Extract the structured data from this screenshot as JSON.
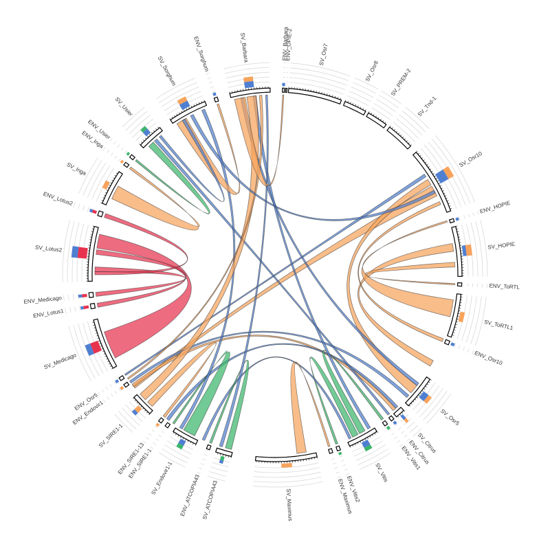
{
  "colors": {
    "orange": "#f7a35c",
    "blue": "#4f7fd1",
    "red": "#e8334f",
    "green": "#3bb56b",
    "black": "#000000"
  },
  "segments": [
    {
      "id": "ENV_Barbara",
      "label": "ENV_Barbara",
      "start": 2.3,
      "end": 2.9,
      "bars": [
        {
          "color": "blue",
          "v": 0.3
        }
      ]
    },
    {
      "id": "ENV_OPIE2",
      "label": "ENV_OPIE-2",
      "start": 3.3,
      "end": 3.7,
      "bars": []
    },
    {
      "id": "SV_Osr7",
      "label": "SV_Osr7",
      "start": 4.2,
      "end": 20.8,
      "bars": []
    },
    {
      "id": "SV_Osr8",
      "label": "SV_Osr8",
      "start": 22.0,
      "end": 29.0,
      "bars": []
    },
    {
      "id": "SV_PREM2",
      "label": "SV_PREM-2",
      "start": 30.0,
      "end": 36.5,
      "bars": []
    },
    {
      "id": "SV_Tnd1",
      "label": "SV_Tnd-1",
      "start": 37.8,
      "end": 46.5,
      "bars": []
    },
    {
      "id": "SV_Osr10",
      "label": "SV_Osr10",
      "start": 49.0,
      "end": 70.0,
      "bars": [
        {
          "color": "blue",
          "v": 0.9
        },
        {
          "color": "orange",
          "v": 0.6
        }
      ]
    },
    {
      "id": "ENV_HOPIE",
      "label": "ENV_HOPIE",
      "start": 72.5,
      "end": 73.5,
      "bars": [
        {
          "color": "blue",
          "v": 0.3
        }
      ]
    },
    {
      "id": "SV_HOPIE",
      "label": "SV_HOPIE",
      "start": 75.0,
      "end": 90.5,
      "bars": [
        {
          "color": "blue",
          "v": 0.35
        },
        {
          "color": "orange",
          "v": 0.55
        }
      ]
    },
    {
      "id": "ENV_ToRTL",
      "label": "ENV_ToRTL",
      "start": 92.5,
      "end": 93.5,
      "bars": []
    },
    {
      "id": "SV_ToRTL1",
      "label": "SV_ToRTL1",
      "start": 96.0,
      "end": 109.5,
      "bars": [
        {
          "color": "orange",
          "v": 0.45
        }
      ]
    },
    {
      "id": "ENV_Osr10",
      "label": "ENV_Osr10",
      "start": 110.8,
      "end": 112.0,
      "bars": [
        {
          "color": "blue",
          "v": 0.35
        }
      ]
    },
    {
      "id": "SV_Osr5",
      "label": "SV_Osr5",
      "start": 124.0,
      "end": 134.5,
      "bars": [
        {
          "color": "blue",
          "v": 0.6
        },
        {
          "color": "orange",
          "v": 0.4
        }
      ]
    },
    {
      "id": "SV_Citrus",
      "label": "SV_Citrus",
      "start": 136.5,
      "end": 139.5,
      "bars": [
        {
          "color": "blue",
          "v": 0.5
        },
        {
          "color": "orange",
          "v": 0.4
        }
      ]
    },
    {
      "id": "ENV_Citrus",
      "label": "ENV_Citrus",
      "start": 140.5,
      "end": 141.5,
      "bars": [
        {
          "color": "blue",
          "v": 0.3
        }
      ]
    },
    {
      "id": "ENV_Vitis1",
      "label": "ENV_Vitis1",
      "start": 143.0,
      "end": 144.0,
      "bars": [
        {
          "color": "green",
          "v": 0.3
        }
      ]
    },
    {
      "id": "SV_Vitis",
      "label": "SV_Vitis",
      "start": 147.0,
      "end": 156.5,
      "bars": [
        {
          "color": "blue",
          "v": 0.55
        },
        {
          "color": "green",
          "v": 0.4
        }
      ]
    },
    {
      "id": "ENV_Vitis2",
      "label": "ENV_Vitis2",
      "start": 159.5,
      "end": 160.5,
      "bars": [
        {
          "color": "green",
          "v": 0.25
        }
      ]
    },
    {
      "id": "ENV_Maximus",
      "label": "ENV_Maximus",
      "start": 162.0,
      "end": 163.0,
      "bars": []
    },
    {
      "id": "SV_Maximus",
      "label": "SV_Maximus",
      "start": 167.0,
      "end": 186.0,
      "bars": [
        {
          "color": "orange",
          "v": 0.4
        }
      ]
    },
    {
      "id": "SV_ATCOPIA43",
      "label": "SV_ATCOPIA43",
      "start": 193.5,
      "end": 198.5,
      "bars": [
        {
          "color": "green",
          "v": 0.4
        },
        {
          "color": "blue",
          "v": 0.3
        }
      ]
    },
    {
      "id": "ENV_ATCOPIA43",
      "label": "ENV_ATCOPIA43",
      "start": 200.5,
      "end": 201.5,
      "bars": []
    },
    {
      "id": "SV_Endovir11",
      "label": "SV_Endovir1-1",
      "start": 205.0,
      "end": 213.0,
      "bars": [
        {
          "color": "blue",
          "v": 0.5
        },
        {
          "color": "green",
          "v": 0.4
        }
      ]
    },
    {
      "id": "ENV_SIRE11",
      "label": "ENV_SIRE1-1",
      "start": 215.0,
      "end": 216.0,
      "bars": []
    },
    {
      "id": "ENV_SIRE113",
      "label": "ENV_SIRE1-13",
      "start": 217.5,
      "end": 218.5,
      "bars": [
        {
          "color": "orange",
          "v": 0.3
        }
      ]
    },
    {
      "id": "SV_SIRE11",
      "label": "SV_SIRE1-1",
      "start": 222.0,
      "end": 229.0,
      "bars": [
        {
          "color": "orange",
          "v": 0.55
        },
        {
          "color": "blue",
          "v": 0.35
        }
      ]
    },
    {
      "id": "ENV_Endovir1",
      "label": "ENV_Endovir1",
      "start": 233.0,
      "end": 234.0,
      "bars": [
        {
          "color": "orange",
          "v": 0.3
        }
      ]
    },
    {
      "id": "ENV_Osr5",
      "label": "ENV_Osr5",
      "start": 235.5,
      "end": 236.5,
      "bars": [
        {
          "color": "blue",
          "v": 0.3
        }
      ]
    },
    {
      "id": "SV_Medicago",
      "label": "SV_Medicago",
      "start": 240.0,
      "end": 256.0,
      "bars": [
        {
          "color": "red",
          "v": 0.8
        },
        {
          "color": "blue",
          "v": 0.55
        }
      ]
    },
    {
      "id": "ENV_Lotus1",
      "label": "ENV_Lotus1",
      "start": 259.5,
      "end": 261.0,
      "bars": [
        {
          "color": "red",
          "v": 0.5
        },
        {
          "color": "blue",
          "v": 0.3
        }
      ]
    },
    {
      "id": "ENV_Medicago",
      "label": "ENV_Medicago",
      "start": 263.0,
      "end": 264.5,
      "bars": [
        {
          "color": "red",
          "v": 0.5
        },
        {
          "color": "blue",
          "v": 0.35
        }
      ]
    },
    {
      "id": "SV_Lotus2",
      "label": "SV_Lotus2",
      "start": 268.0,
      "end": 285.0,
      "bars": [
        {
          "color": "red",
          "v": 0.9
        },
        {
          "color": "blue",
          "v": 0.6
        }
      ]
    },
    {
      "id": "ENV_Lotus2",
      "label": "ENV_Lotus2",
      "start": 288.5,
      "end": 290.0,
      "bars": [
        {
          "color": "red",
          "v": 0.4
        },
        {
          "color": "blue",
          "v": 0.3
        }
      ]
    },
    {
      "id": "SV_Inga",
      "label": "SV_Inga",
      "start": 292.5,
      "end": 303.5,
      "bars": [
        {
          "color": "orange",
          "v": 0.45
        }
      ]
    },
    {
      "id": "ENV_Inga",
      "label": "ENV_Inga",
      "start": 306.0,
      "end": 307.0,
      "bars": [
        {
          "color": "orange",
          "v": 0.25
        }
      ]
    },
    {
      "id": "ENV_Usier",
      "label": "ENV_Usier",
      "start": 309.0,
      "end": 310.0,
      "bars": [
        {
          "color": "green",
          "v": 0.25
        }
      ]
    },
    {
      "id": "SV_Usier",
      "label": "SV_Usier",
      "start": 314.0,
      "end": 322.0,
      "bars": [
        {
          "color": "blue",
          "v": 0.5
        },
        {
          "color": "green",
          "v": 0.35
        }
      ]
    },
    {
      "id": "SV_Sorghum",
      "label": "SV_Sorghum",
      "start": 326.0,
      "end": 338.0,
      "bars": [
        {
          "color": "blue",
          "v": 0.6
        },
        {
          "color": "orange",
          "v": 0.45
        }
      ]
    },
    {
      "id": "ENV_Sorghum",
      "label": "ENV_Sorghum",
      "start": 341.0,
      "end": 342.0,
      "bars": [
        {
          "color": "blue",
          "v": 0.3
        }
      ]
    },
    {
      "id": "SV_Barbara",
      "label": "SV_Barbara",
      "start": 346.0,
      "end": 358.5,
      "bars": [
        {
          "color": "blue",
          "v": 0.6
        },
        {
          "color": "orange",
          "v": 0.45
        }
      ]
    }
  ],
  "links": [
    {
      "a": [
        60.5,
        64.0
      ],
      "b": [
        231.0,
        232.0
      ],
      "color": "orange"
    },
    {
      "a": [
        80.0,
        82.5
      ],
      "b": [
        118.5,
        120.5
      ],
      "color": "orange"
    },
    {
      "a": [
        86.0,
        87.5
      ],
      "b": [
        92.8,
        93.2
      ],
      "color": "orange"
    },
    {
      "a": [
        98.0,
        103.5
      ],
      "b": [
        72.5,
        73.0
      ],
      "color": "orange"
    },
    {
      "a": [
        66.0,
        67.0
      ],
      "b": [
        110.8,
        111.8
      ],
      "color": "orange"
    },
    {
      "a": [
        128.0,
        131.0
      ],
      "b": [
        58.0,
        60.0
      ],
      "color": "orange"
    },
    {
      "a": [
        56.0,
        57.0
      ],
      "b": [
        236.0,
        236.5
      ],
      "color": "blue"
    },
    {
      "a": [
        132.0,
        133.0
      ],
      "b": [
        233.0,
        233.8
      ],
      "color": "blue"
    },
    {
      "a": [
        138.0,
        139.0
      ],
      "b": [
        231.5,
        232.5
      ],
      "color": "orange"
    },
    {
      "a": [
        137.0,
        137.8
      ],
      "b": [
        216.0,
        217.0
      ],
      "color": "blue"
    },
    {
      "a": [
        140.5,
        141.2
      ],
      "b": [
        318.0,
        319.0
      ],
      "color": "blue"
    },
    {
      "a": [
        127.0,
        128.0
      ],
      "b": [
        349.0,
        350.0
      ],
      "color": "blue"
    },
    {
      "a": [
        150.0,
        152.0
      ],
      "b": [
        143.0,
        143.8
      ],
      "color": "green"
    },
    {
      "a": [
        152.5,
        154.5
      ],
      "b": [
        159.6,
        160.3
      ],
      "color": "green"
    },
    {
      "a": [
        148.0,
        149.0
      ],
      "b": [
        353.0,
        354.0
      ],
      "color": "blue"
    },
    {
      "a": [
        155.0,
        155.8
      ],
      "b": [
        203.0,
        203.8
      ],
      "color": "blue"
    },
    {
      "a": [
        170.0,
        173.0
      ],
      "b": [
        162.2,
        162.8
      ],
      "color": "orange"
    },
    {
      "a": [
        194.0,
        196.0
      ],
      "b": [
        200.6,
        201.3
      ],
      "color": "green"
    },
    {
      "a": [
        197.0,
        198.0
      ],
      "b": [
        357.0,
        357.6
      ],
      "color": "blue"
    },
    {
      "a": [
        206.5,
        210.5
      ],
      "b": [
        214.0,
        214.6
      ],
      "color": "green"
    },
    {
      "a": [
        211.0,
        212.0
      ],
      "b": [
        336.0,
        337.0
      ],
      "color": "blue"
    },
    {
      "a": [
        223.0,
        225.0
      ],
      "b": [
        217.6,
        218.4
      ],
      "color": "orange"
    },
    {
      "a": [
        226.0,
        228.5
      ],
      "b": [
        351.0,
        354.0
      ],
      "color": "orange"
    },
    {
      "a": [
        234.5,
        235.0
      ],
      "b": [
        355.0,
        355.8
      ],
      "color": "orange"
    },
    {
      "a": [
        242.5,
        251.5
      ],
      "b": [
        278.5,
        283.0
      ],
      "color": "red"
    },
    {
      "a": [
        259.6,
        260.9
      ],
      "b": [
        276.5,
        278.0
      ],
      "color": "red"
    },
    {
      "a": [
        263.1,
        264.4
      ],
      "b": [
        271.0,
        272.5
      ],
      "color": "red"
    },
    {
      "a": [
        270.0,
        271.0
      ],
      "b": [
        288.6,
        289.9
      ],
      "color": "red"
    },
    {
      "a": [
        295.0,
        299.5
      ],
      "b": [
        306.1,
        306.8
      ],
      "color": "orange"
    },
    {
      "a": [
        315.5,
        317.5
      ],
      "b": [
        309.2,
        309.8
      ],
      "color": "green"
    },
    {
      "a": [
        327.0,
        330.5
      ],
      "b": [
        341.2,
        341.8
      ],
      "color": "orange"
    },
    {
      "a": [
        320.0,
        320.8
      ],
      "b": [
        329.0,
        330.0
      ],
      "color": "blue"
    },
    {
      "a": [
        347.0,
        350.5
      ],
      "b": [
        2.4,
        2.8
      ],
      "color": "orange"
    },
    {
      "a": [
        332.0,
        333.0
      ],
      "b": [
        62.0,
        63.0
      ],
      "color": "blue"
    }
  ]
}
